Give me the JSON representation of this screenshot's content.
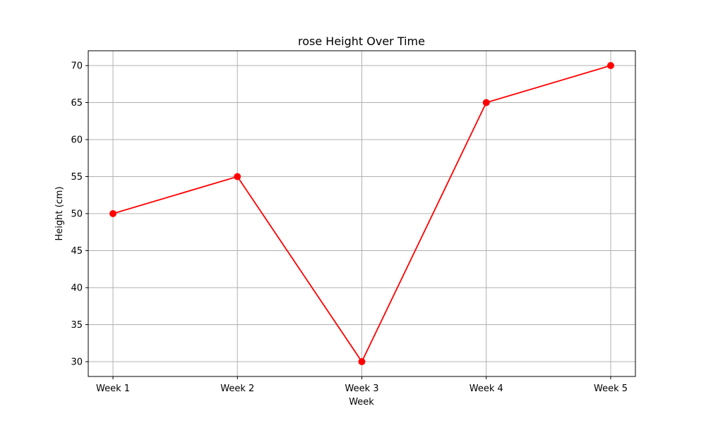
{
  "chart_data": {
    "type": "line",
    "title": "rose Height Over Time",
    "xlabel": "Week",
    "ylabel": "Height (cm)",
    "categories": [
      "Week 1",
      "Week 2",
      "Week 3",
      "Week 4",
      "Week 5"
    ],
    "series": [
      {
        "values": [
          50,
          55,
          30,
          65,
          70
        ],
        "color": "#ff0000",
        "marker": "circle"
      }
    ],
    "ylim": [
      28,
      72
    ],
    "yticks": [
      30,
      35,
      40,
      45,
      50,
      55,
      60,
      65,
      70
    ],
    "grid": true
  }
}
